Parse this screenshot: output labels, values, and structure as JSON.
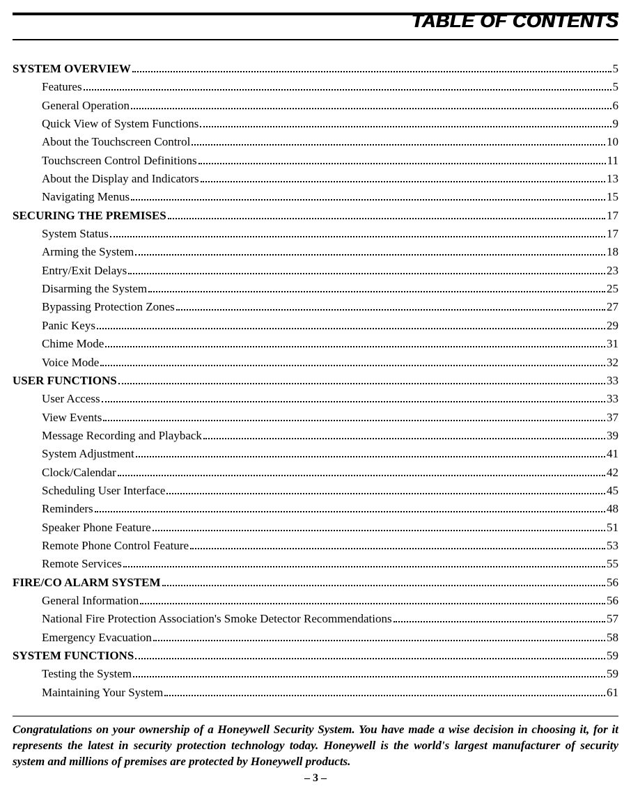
{
  "page_title": "TABLE OF CONTENTS",
  "congrats_text": "Congratulations on your ownership of a Honeywell Security System. You have made a wise decision in choosing it, for it represents the latest in security protection technology today. Honeywell is the world's largest manufacturer of security system and millions of premises are protected by Honeywell products.",
  "page_number": "– 3 –",
  "toc": [
    {
      "level": 0,
      "label": "SYSTEM OVERVIEW",
      "page": "5"
    },
    {
      "level": 1,
      "label": "Features",
      "page": "5"
    },
    {
      "level": 1,
      "label": "General Operation",
      "page": "6"
    },
    {
      "level": 1,
      "label": "Quick View of System Functions",
      "page": "9"
    },
    {
      "level": 1,
      "label": "About the Touchscreen Control",
      "page": "10"
    },
    {
      "level": 1,
      "label": "Touchscreen Control Definitions",
      "page": "11"
    },
    {
      "level": 1,
      "label": "About the Display and Indicators",
      "page": "13"
    },
    {
      "level": 1,
      "label": "Navigating Menus",
      "page": "15"
    },
    {
      "level": 0,
      "label": "SECURING THE PREMISES",
      "page": "17"
    },
    {
      "level": 1,
      "label": "System Status",
      "page": "17"
    },
    {
      "level": 1,
      "label": "Arming the System",
      "page": "18"
    },
    {
      "level": 1,
      "label": "Entry/Exit Delays",
      "page": "23"
    },
    {
      "level": 1,
      "label": "Disarming the System",
      "page": "25"
    },
    {
      "level": 1,
      "label": "Bypassing Protection Zones",
      "page": "27"
    },
    {
      "level": 1,
      "label": "Panic Keys",
      "page": "29"
    },
    {
      "level": 1,
      "label": "Chime Mode",
      "page": "31"
    },
    {
      "level": 1,
      "label": "Voice Mode",
      "page": "32"
    },
    {
      "level": 0,
      "label": "USER FUNCTIONS",
      "page": "33"
    },
    {
      "level": 1,
      "label": "User Access",
      "page": "33"
    },
    {
      "level": 1,
      "label": "View Events",
      "page": "37"
    },
    {
      "level": 1,
      "label": "Message Recording and Playback",
      "page": "39"
    },
    {
      "level": 1,
      "label": "System Adjustment",
      "page": "41"
    },
    {
      "level": 1,
      "label": "Clock/Calendar",
      "page": "42"
    },
    {
      "level": 1,
      "label": "Scheduling User Interface",
      "page": "45"
    },
    {
      "level": 1,
      "label": "Reminders",
      "page": "48"
    },
    {
      "level": 1,
      "label": "Speaker Phone Feature",
      "page": "51"
    },
    {
      "level": 1,
      "label": "Remote Phone Control Feature",
      "page": "53"
    },
    {
      "level": 1,
      "label": "Remote Services",
      "page": "55"
    },
    {
      "level": 0,
      "label": "FIRE/CO ALARM SYSTEM",
      "page": "56"
    },
    {
      "level": 1,
      "label": "General Information",
      "page": "56"
    },
    {
      "level": 1,
      "label": "National Fire Protection Association's Smoke Detector Recommendations",
      "page": "57"
    },
    {
      "level": 1,
      "label": "Emergency Evacuation",
      "page": "58"
    },
    {
      "level": 0,
      "label": "SYSTEM FUNCTIONS",
      "page": "59"
    },
    {
      "level": 1,
      "label": "Testing the System",
      "page": "59"
    },
    {
      "level": 1,
      "label": "Maintaining Your System",
      "page": "61"
    }
  ]
}
